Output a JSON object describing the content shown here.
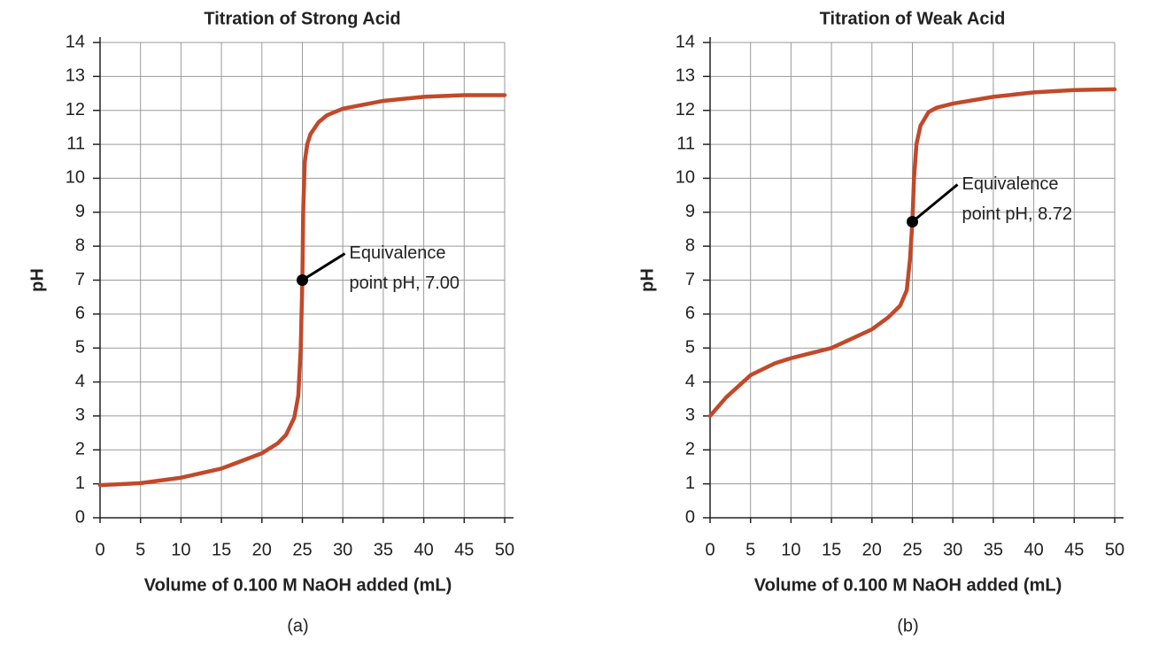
{
  "chart_data": [
    {
      "type": "line",
      "title": "Titration of Strong Acid",
      "xlabel": "Volume of 0.100 M NaOH added (mL)",
      "ylabel": "pH",
      "caption": "(a)",
      "x": [
        0,
        5,
        10,
        15,
        20,
        22,
        23,
        24,
        24.5,
        24.8,
        25,
        25.1,
        25.3,
        25.6,
        26,
        27,
        28,
        30,
        35,
        40,
        45,
        50
      ],
      "values": [
        0.96,
        1.02,
        1.18,
        1.45,
        1.9,
        2.2,
        2.45,
        2.95,
        3.6,
        5.0,
        7.0,
        9.0,
        10.5,
        11.0,
        11.3,
        11.65,
        11.85,
        12.05,
        12.28,
        12.4,
        12.45,
        12.45
      ],
      "color": "#c1492a",
      "xlim": [
        0,
        50
      ],
      "ylim": [
        0,
        14
      ],
      "xticks": [
        0,
        5,
        10,
        15,
        20,
        25,
        30,
        35,
        40,
        45,
        50
      ],
      "yticks": [
        0,
        1,
        2,
        3,
        4,
        5,
        6,
        7,
        8,
        9,
        10,
        11,
        12,
        13,
        14
      ],
      "grid": true,
      "annotation": {
        "text": [
          "Equivalence",
          "point pH, 7.00"
        ],
        "x": 25,
        "y": 7.0
      }
    },
    {
      "type": "line",
      "title": "Titration of Weak Acid",
      "xlabel": "Volume of 0.100 M NaOH added (mL)",
      "ylabel": "pH",
      "caption": "(b)",
      "x": [
        0,
        2,
        5,
        8,
        10,
        15,
        20,
        22,
        23.5,
        24.3,
        24.7,
        25,
        25.2,
        25.5,
        26,
        27,
        28,
        30,
        35,
        40,
        45,
        50
      ],
      "values": [
        3.0,
        3.55,
        4.2,
        4.55,
        4.7,
        5.0,
        5.55,
        5.9,
        6.25,
        6.7,
        7.6,
        8.72,
        10.0,
        11.0,
        11.55,
        11.95,
        12.08,
        12.2,
        12.4,
        12.53,
        12.6,
        12.62
      ],
      "color": "#c1492a",
      "xlim": [
        0,
        50
      ],
      "ylim": [
        0,
        14
      ],
      "xticks": [
        0,
        5,
        10,
        15,
        20,
        25,
        30,
        35,
        40,
        45,
        50
      ],
      "yticks": [
        0,
        1,
        2,
        3,
        4,
        5,
        6,
        7,
        8,
        9,
        10,
        11,
        12,
        13,
        14
      ],
      "grid": true,
      "annotation": {
        "text": [
          "Equivalence",
          "point pH, 8.72"
        ],
        "x": 25,
        "y": 8.72
      }
    }
  ]
}
